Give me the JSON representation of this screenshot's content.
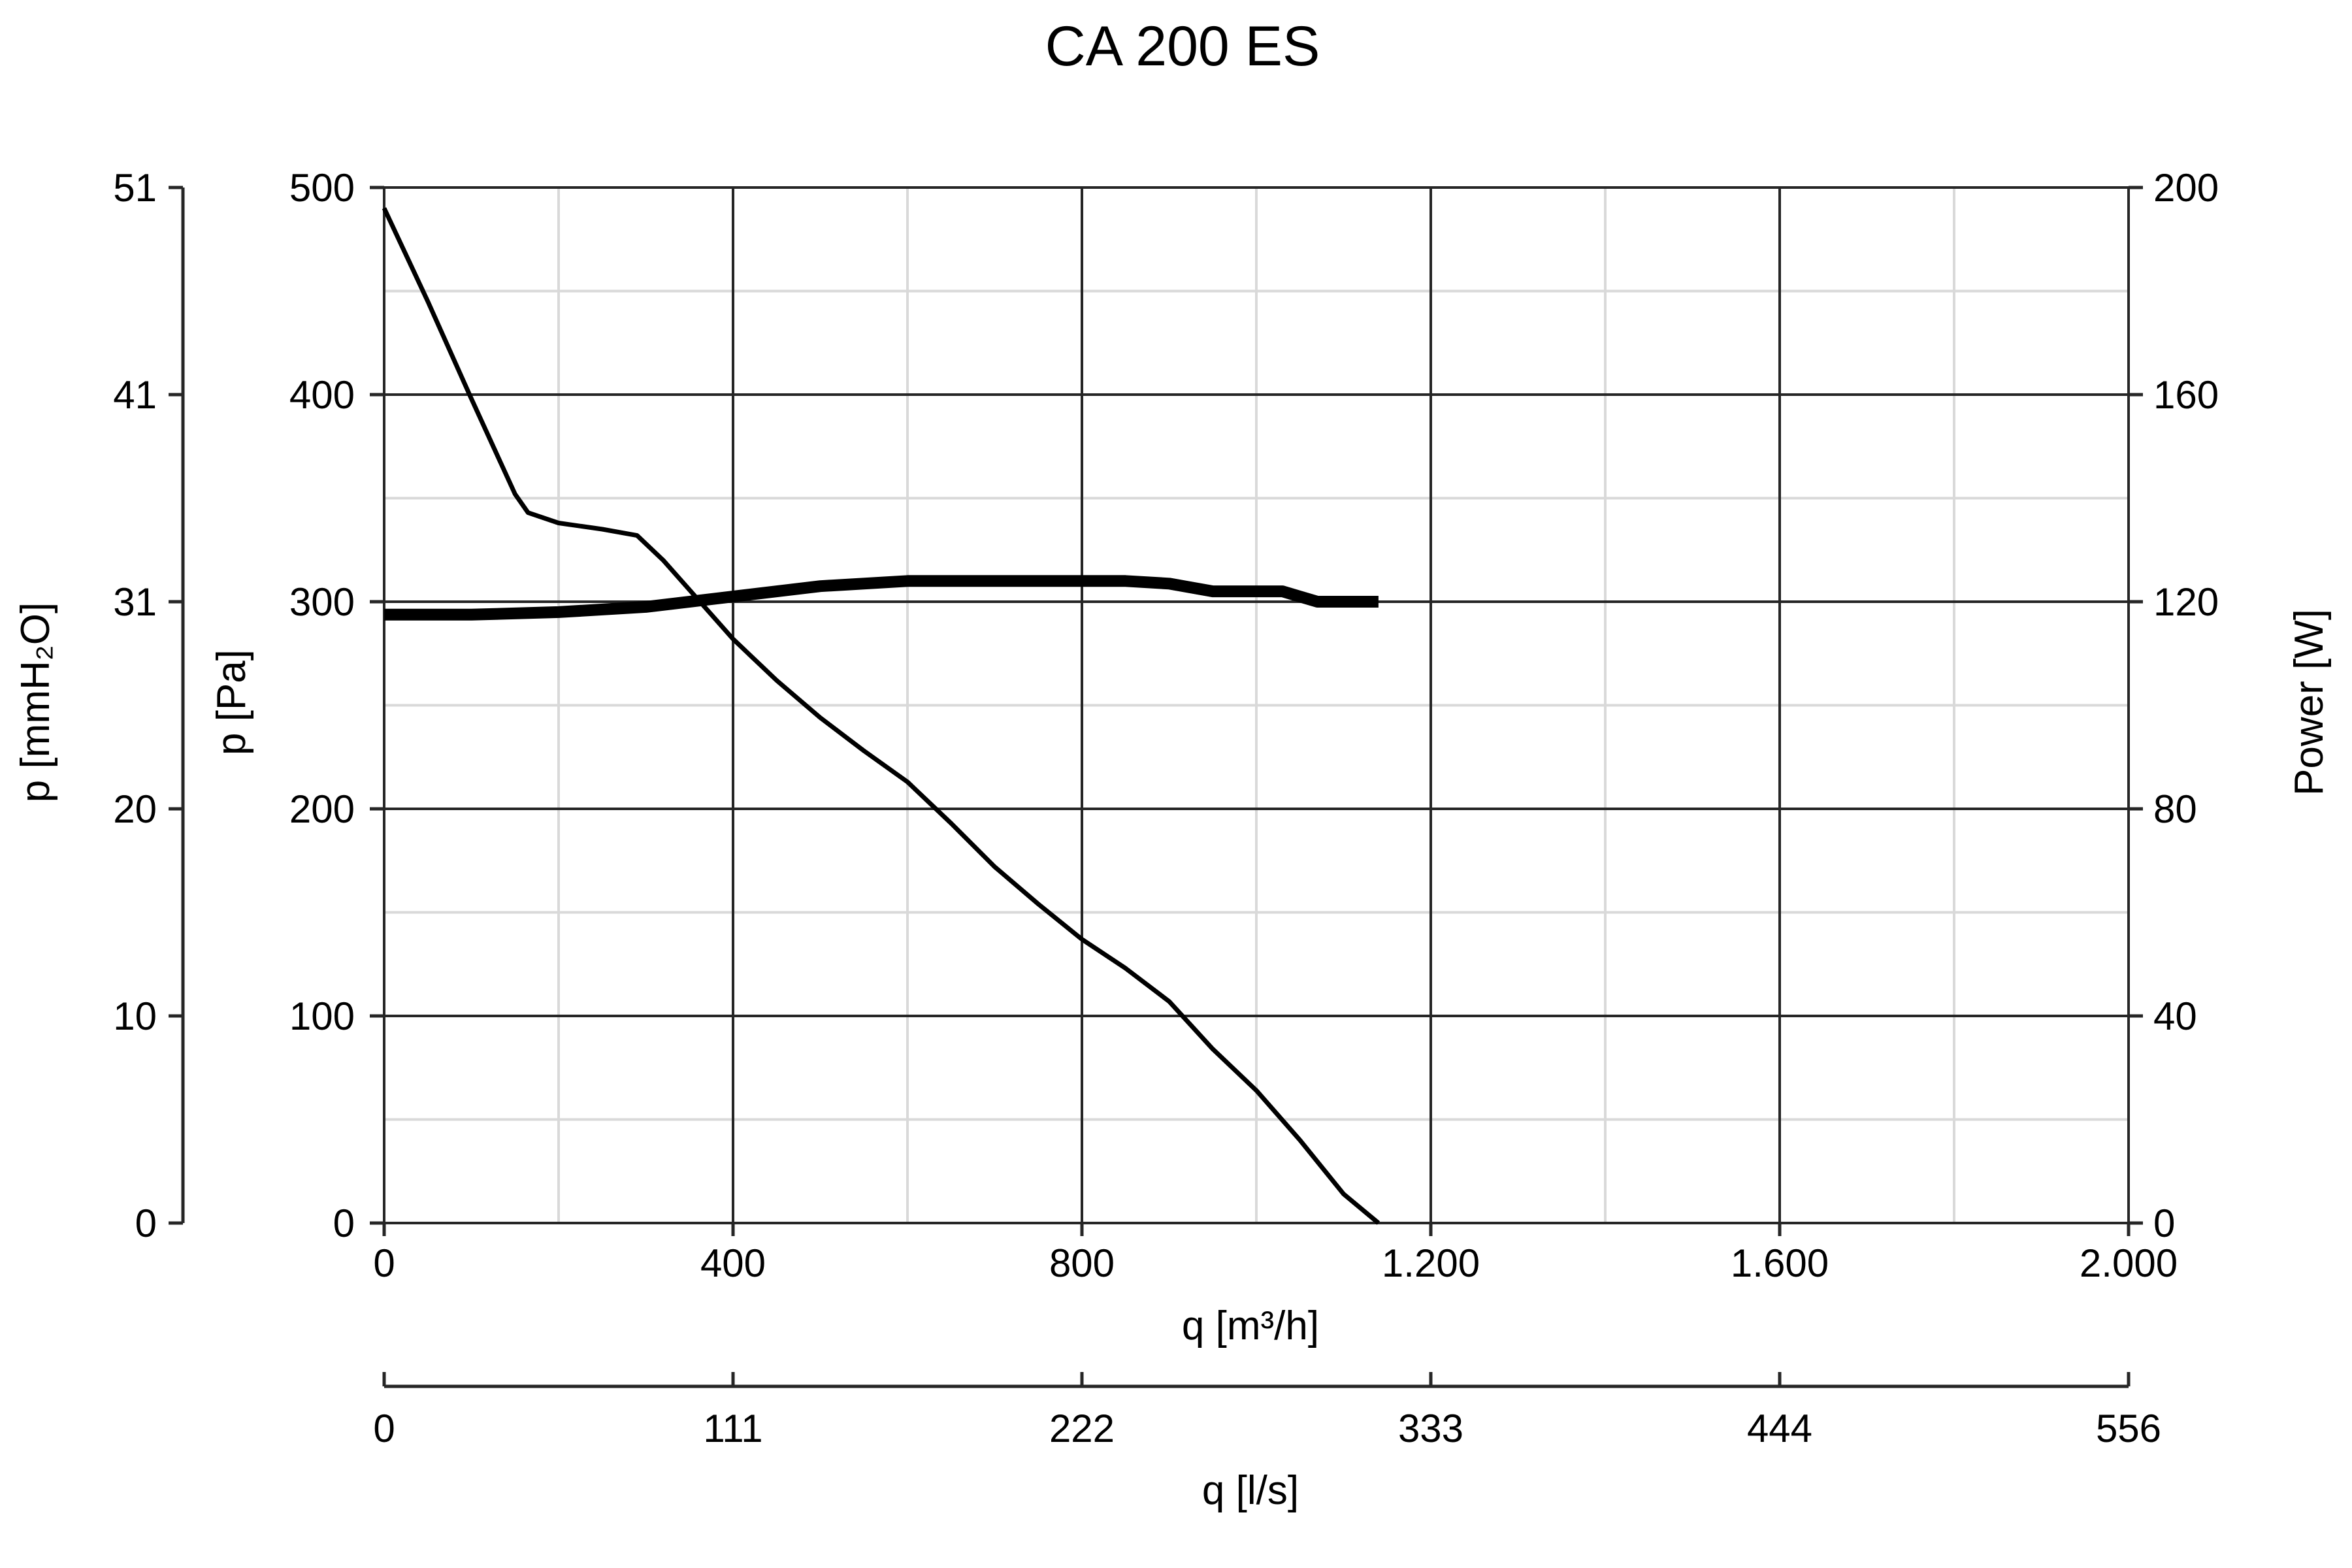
{
  "chart_data": {
    "type": "line",
    "title": "CA 200 ES",
    "x_axis": {
      "label": "q [m³/h]",
      "range": [
        0,
        2000
      ],
      "ticks": [
        0,
        400,
        800,
        1200,
        1600,
        2000
      ],
      "tick_labels": [
        "0",
        "400",
        "800",
        "1.200",
        "1.600",
        "2.000"
      ],
      "minor_step": 200
    },
    "x_axis_secondary": {
      "label": "q [l/s]",
      "range": [
        0,
        556
      ],
      "tick_labels": [
        "0",
        "111",
        "222",
        "333",
        "444",
        "556"
      ]
    },
    "y_axis_left": {
      "label": "p [Pa]",
      "range": [
        0,
        500
      ],
      "ticks": [
        0,
        100,
        200,
        300,
        400,
        500
      ],
      "tick_labels": [
        "0",
        "100",
        "200",
        "300",
        "400",
        "500"
      ],
      "minor_step": 50
    },
    "y_axis_left_outer": {
      "label": "p [mmH₂O]",
      "range": [
        0,
        51
      ],
      "tick_labels": [
        "0",
        "10",
        "20",
        "31",
        "41",
        "51"
      ]
    },
    "y_axis_right": {
      "label": "Power [W]",
      "range": [
        0,
        200
      ],
      "ticks": [
        0,
        40,
        80,
        120,
        160,
        200
      ],
      "tick_labels": [
        "0",
        "40",
        "80",
        "120",
        "160",
        "200"
      ]
    },
    "grid": true,
    "series": [
      {
        "axis": "left",
        "line_width": 7,
        "x": [
          0,
          50,
          100,
          150,
          165,
          200,
          250,
          290,
          320,
          360,
          400,
          450,
          500,
          550,
          600,
          650,
          700,
          750,
          800,
          850,
          900,
          950,
          1000,
          1050,
          1100,
          1140
        ],
        "y": [
          490,
          445,
          398,
          352,
          343,
          338,
          335,
          332,
          320,
          301,
          282,
          262,
          244,
          228,
          213,
          193,
          172,
          154,
          137,
          123,
          107,
          84,
          64,
          40,
          14,
          0
        ]
      },
      {
        "axis": "right",
        "line_width": 18,
        "x": [
          0,
          100,
          200,
          300,
          400,
          500,
          600,
          700,
          800,
          850,
          900,
          950,
          1000,
          1030,
          1050,
          1070,
          1140
        ],
        "y": [
          117.5,
          117.5,
          118,
          119,
          121,
          123,
          124,
          124,
          124,
          124,
          123.5,
          122,
          122,
          122,
          121,
          120,
          120
        ]
      }
    ]
  }
}
